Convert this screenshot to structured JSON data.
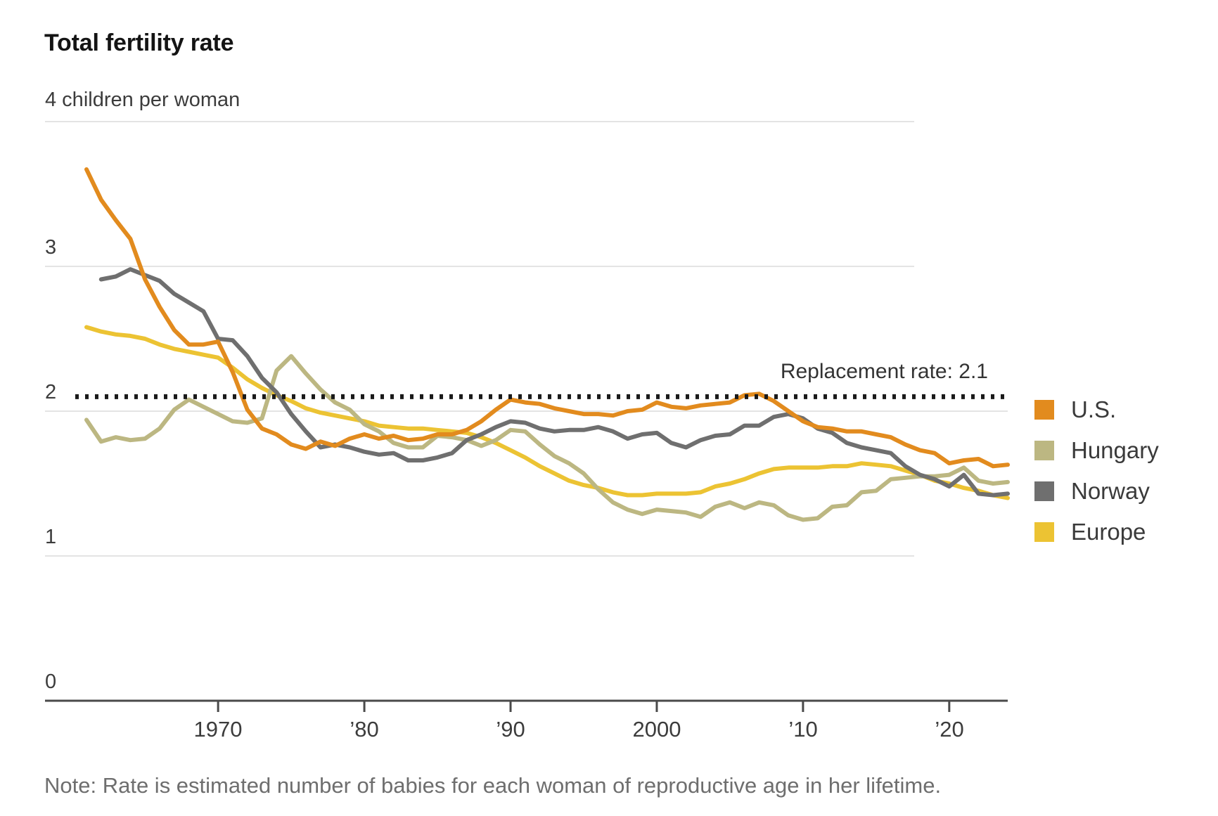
{
  "title": "Total fertility rate",
  "note": "Note: Rate is estimated number of babies for each woman of reproductive age in her lifetime.",
  "chart_data": {
    "type": "line",
    "title": "Total fertility rate",
    "unit_label": "4 children per woman",
    "x_range": [
      1961,
      2024
    ],
    "ylim": [
      0,
      4
    ],
    "grid": true,
    "y_axis": {
      "ticks": [
        {
          "value": 4,
          "label": "4 children per woman"
        },
        {
          "value": 3,
          "label": "3"
        },
        {
          "value": 2,
          "label": "2"
        },
        {
          "value": 1,
          "label": "1"
        },
        {
          "value": 0,
          "label": "0"
        }
      ]
    },
    "x_axis": {
      "ticks": [
        {
          "year": 1970,
          "label": "1970"
        },
        {
          "year": 1980,
          "label": "’80"
        },
        {
          "year": 1990,
          "label": "’90"
        },
        {
          "year": 2000,
          "label": "2000"
        },
        {
          "year": 2010,
          "label": "’10"
        },
        {
          "year": 2020,
          "label": "’20"
        }
      ]
    },
    "replacement": {
      "label": "Replacement rate: 2.1",
      "value": 2.1
    },
    "legend": {
      "position": "right",
      "items": [
        {
          "label": "U.S.",
          "color": "#E28B1E"
        },
        {
          "label": "Hungary",
          "color": "#BCB782"
        },
        {
          "label": "Norway",
          "color": "#6F6F6F"
        },
        {
          "label": "Europe",
          "color": "#ECC333"
        }
      ]
    },
    "series": [
      {
        "name": "Europe",
        "color": "#ECC333",
        "start_year": 1961,
        "values": [
          2.58,
          2.55,
          2.53,
          2.52,
          2.5,
          2.46,
          2.43,
          2.41,
          2.39,
          2.37,
          2.3,
          2.22,
          2.16,
          2.11,
          2.07,
          2.02,
          1.99,
          1.97,
          1.95,
          1.93,
          1.9,
          1.89,
          1.88,
          1.88,
          1.87,
          1.86,
          1.85,
          1.82,
          1.78,
          1.73,
          1.68,
          1.62,
          1.57,
          1.52,
          1.49,
          1.47,
          1.44,
          1.42,
          1.42,
          1.43,
          1.43,
          1.43,
          1.44,
          1.48,
          1.5,
          1.53,
          1.57,
          1.6,
          1.61,
          1.61,
          1.61,
          1.62,
          1.62,
          1.64,
          1.63,
          1.62,
          1.59,
          1.56,
          1.52,
          1.5,
          1.47,
          1.45,
          1.42,
          1.4
        ]
      },
      {
        "name": "Hungary",
        "color": "#BCB782",
        "start_year": 1961,
        "values": [
          1.94,
          1.79,
          1.82,
          1.8,
          1.81,
          1.88,
          2.01,
          2.08,
          2.03,
          1.98,
          1.93,
          1.92,
          1.95,
          2.28,
          2.38,
          2.26,
          2.15,
          2.06,
          2.01,
          1.91,
          1.86,
          1.78,
          1.75,
          1.75,
          1.83,
          1.82,
          1.8,
          1.76,
          1.8,
          1.87,
          1.86,
          1.77,
          1.69,
          1.64,
          1.57,
          1.46,
          1.37,
          1.32,
          1.29,
          1.32,
          1.31,
          1.3,
          1.27,
          1.34,
          1.37,
          1.33,
          1.37,
          1.35,
          1.28,
          1.25,
          1.26,
          1.34,
          1.35,
          1.44,
          1.45,
          1.53,
          1.54,
          1.55,
          1.55,
          1.56,
          1.61,
          1.52,
          1.5,
          1.51
        ]
      },
      {
        "name": "Norway",
        "color": "#6F6F6F",
        "start_year": 1962,
        "values": [
          2.91,
          2.93,
          2.98,
          2.94,
          2.9,
          2.81,
          2.75,
          2.69,
          2.5,
          2.49,
          2.38,
          2.23,
          2.13,
          1.98,
          1.86,
          1.75,
          1.77,
          1.75,
          1.72,
          1.7,
          1.71,
          1.66,
          1.66,
          1.68,
          1.71,
          1.8,
          1.84,
          1.89,
          1.93,
          1.92,
          1.88,
          1.86,
          1.87,
          1.87,
          1.89,
          1.86,
          1.81,
          1.84,
          1.85,
          1.78,
          1.75,
          1.8,
          1.83,
          1.84,
          1.9,
          1.9,
          1.96,
          1.98,
          1.95,
          1.88,
          1.85,
          1.78,
          1.75,
          1.73,
          1.71,
          1.62,
          1.56,
          1.53,
          1.48,
          1.56,
          1.43,
          1.42,
          1.43
        ]
      },
      {
        "name": "U.S.",
        "color": "#E28B1E",
        "start_year": 1961,
        "values": [
          3.67,
          3.46,
          3.32,
          3.19,
          2.91,
          2.72,
          2.56,
          2.46,
          2.46,
          2.48,
          2.27,
          2.01,
          1.88,
          1.84,
          1.77,
          1.74,
          1.79,
          1.76,
          1.81,
          1.84,
          1.81,
          1.83,
          1.8,
          1.81,
          1.84,
          1.84,
          1.87,
          1.93,
          2.01,
          2.08,
          2.06,
          2.05,
          2.02,
          2.0,
          1.98,
          1.98,
          1.97,
          2.0,
          2.01,
          2.06,
          2.03,
          2.02,
          2.04,
          2.05,
          2.06,
          2.11,
          2.12,
          2.07,
          2.0,
          1.93,
          1.89,
          1.88,
          1.86,
          1.86,
          1.84,
          1.82,
          1.77,
          1.73,
          1.71,
          1.64,
          1.66,
          1.67,
          1.62,
          1.63
        ]
      }
    ]
  }
}
